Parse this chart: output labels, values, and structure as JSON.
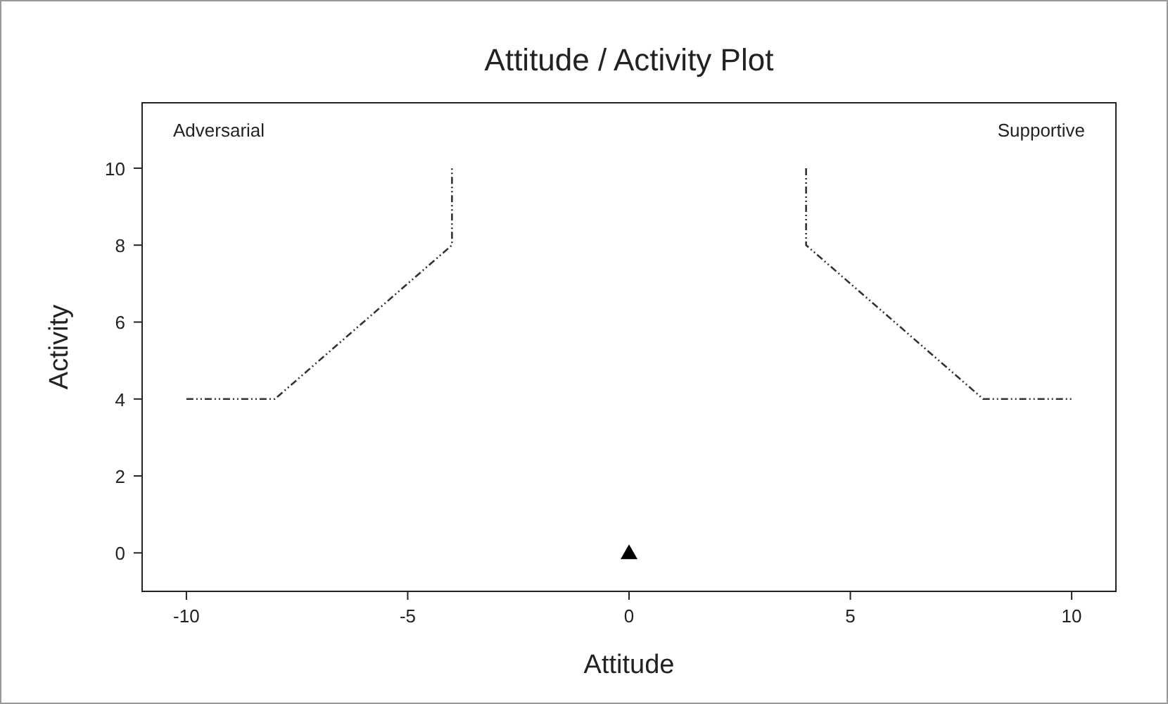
{
  "chart_data": {
    "type": "line",
    "title": "Attitude / Activity Plot",
    "xlabel": "Attitude",
    "ylabel": "Activity",
    "xlim": [
      -11,
      11
    ],
    "ylim": [
      -1,
      11.7
    ],
    "xticks": [
      -10,
      -5,
      0,
      5,
      10
    ],
    "yticks": [
      0,
      2,
      4,
      6,
      8,
      10
    ],
    "grid": false,
    "annotations": [
      "Adversarial",
      "Supportive"
    ],
    "series": [
      {
        "color": "#333333",
        "x": [
          -10,
          -8,
          -4,
          -4
        ],
        "values": [
          4,
          4,
          8,
          10
        ],
        "line_style": "dashed",
        "marker": "none"
      },
      {
        "color": "#333333",
        "x": [
          4,
          4,
          8,
          10
        ],
        "values": [
          10,
          8,
          4,
          4
        ],
        "line_style": "dashed",
        "marker": "none"
      },
      {
        "type": "scatter",
        "color": "#000000",
        "x": [
          0
        ],
        "values": [
          0
        ],
        "marker": "triangle"
      }
    ]
  }
}
